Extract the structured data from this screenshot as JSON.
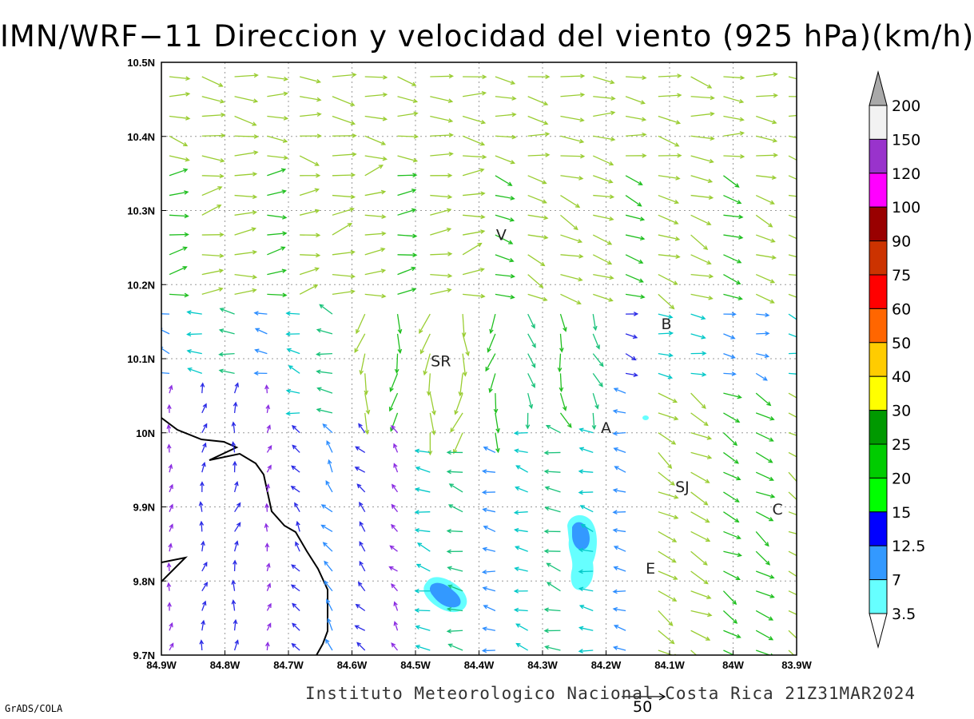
{
  "title": "IMN/WRF−11 Direccion y velocidad del viento (925 hPa)(km/h)",
  "footer": "Instituto Meteorologico Nacional Costa Rica 21Z31MAR2024",
  "credit": "GrADS/COLA",
  "reference_vector_label": "50",
  "map": {
    "lon_range": [
      -84.9,
      -83.9
    ],
    "lat_range": [
      9.7,
      10.5
    ],
    "lon_ticks": [
      "84.9W",
      "84.8W",
      "84.7W",
      "84.6W",
      "84.5W",
      "84.4W",
      "84.3W",
      "84.2W",
      "84.1W",
      "84W",
      "83.9W"
    ],
    "lat_ticks": [
      "9.7N",
      "9.8N",
      "9.9N",
      "10N",
      "10.1N",
      "10.2N",
      "10.3N",
      "10.4N",
      "10.5N"
    ],
    "grid": true,
    "cities": [
      {
        "label": "V",
        "lon": -84.365,
        "lat": 10.26
      },
      {
        "label": "SR",
        "lon": -84.46,
        "lat": 10.09
      },
      {
        "label": "B",
        "lon": -84.105,
        "lat": 10.14
      },
      {
        "label": "A",
        "lon": -84.2,
        "lat": 10.0
      },
      {
        "label": "SJ",
        "lon": -84.08,
        "lat": 9.92
      },
      {
        "label": "C",
        "lon": -83.93,
        "lat": 9.89
      },
      {
        "label": "E",
        "lon": -84.13,
        "lat": 9.81
      }
    ]
  },
  "legend": {
    "labels": [
      "200",
      "150",
      "120",
      "100",
      "90",
      "75",
      "60",
      "50",
      "40",
      "30",
      "25",
      "20",
      "15",
      "12.5",
      "7",
      "3.5"
    ],
    "colors": [
      "#a9a9a9",
      "#f2f2f2",
      "#9933cc",
      "#ff00ff",
      "#990000",
      "#cc3300",
      "#ff0000",
      "#ff6600",
      "#ffcc00",
      "#ffff00",
      "#009900",
      "#00cc00",
      "#00ff00",
      "#0000ff",
      "#3399ff",
      "#66ffff"
    ]
  },
  "shaded_areas_color": [
    "#66ffff",
    "#3399ff"
  ],
  "coastline_color": "#000000"
}
